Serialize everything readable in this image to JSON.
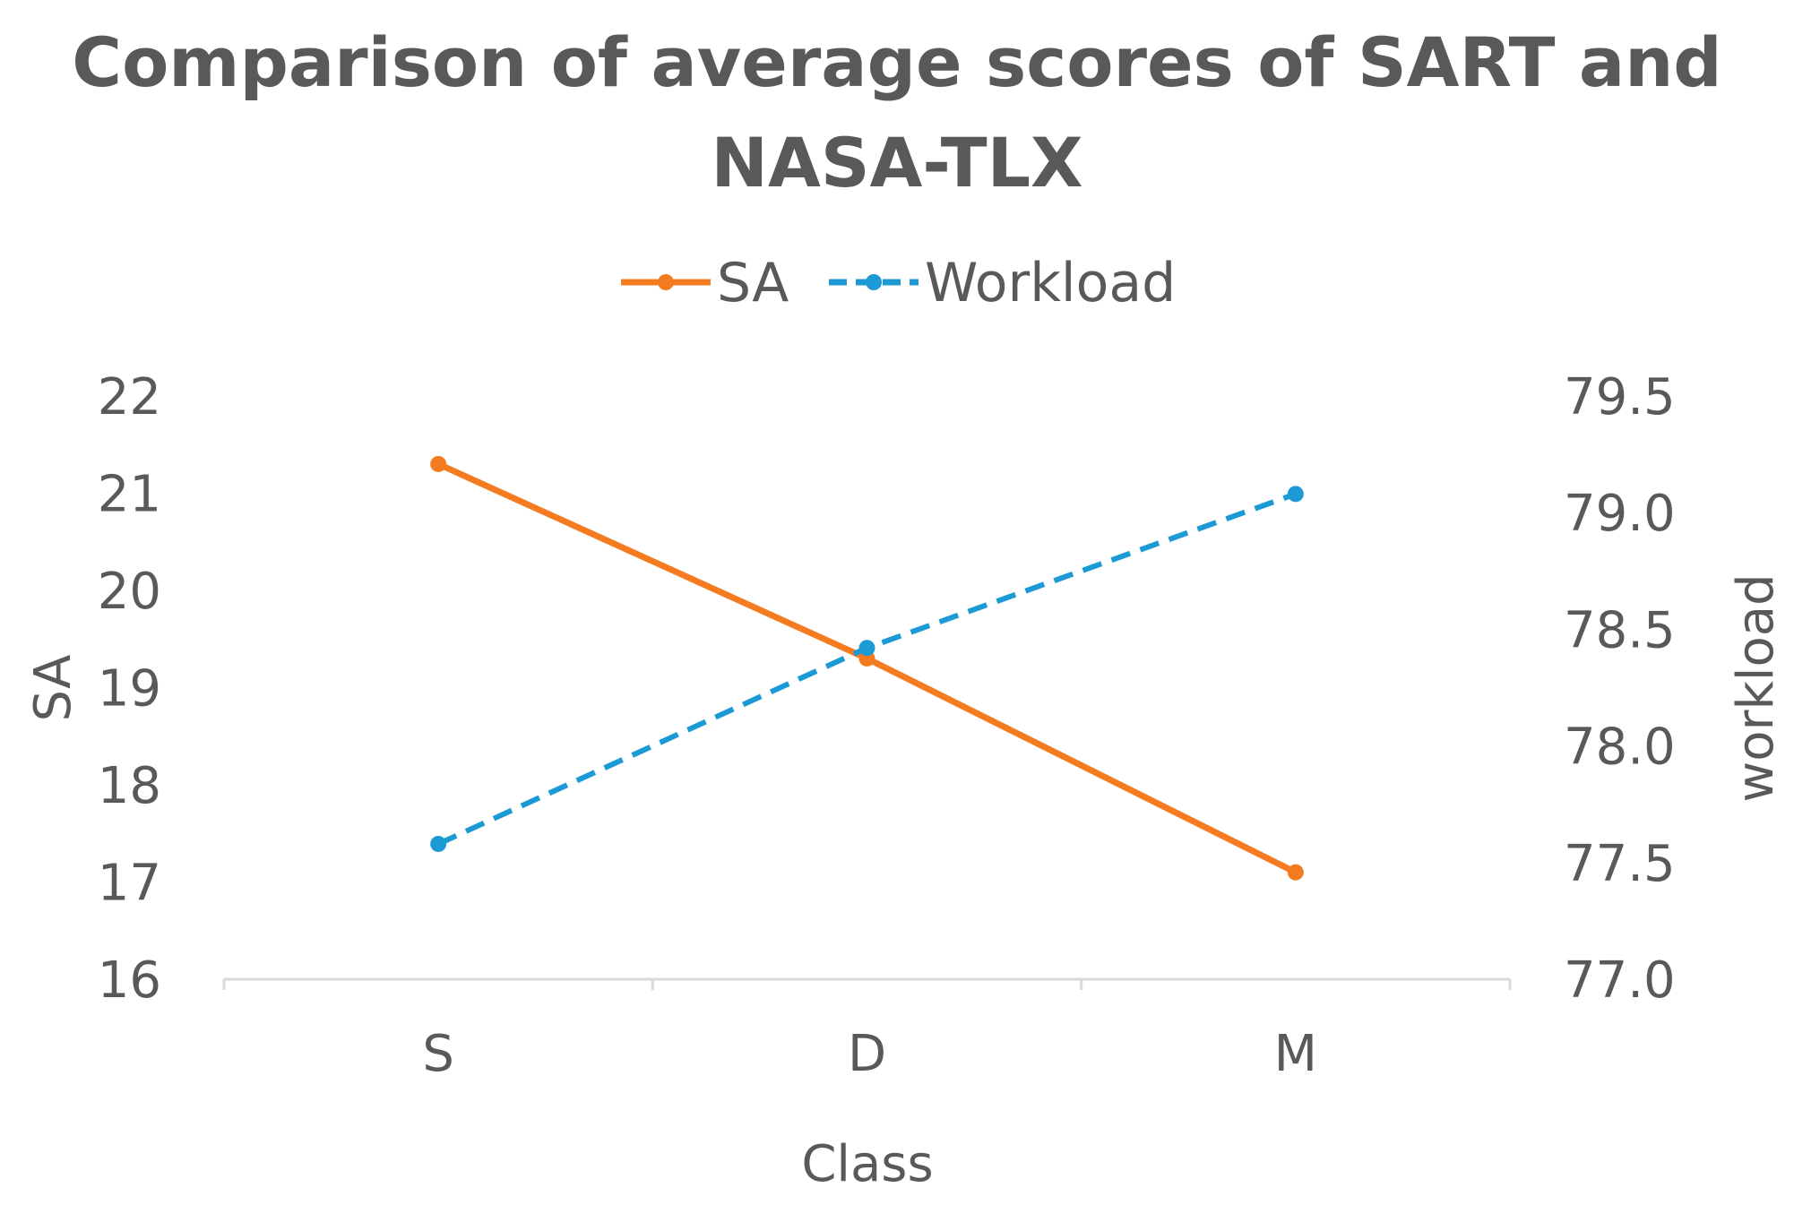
{
  "chart_data": {
    "type": "line",
    "title_lines": [
      "Comparison of average scores of SART and",
      "NASA-TLX"
    ],
    "categories": [
      "S",
      "D",
      "M"
    ],
    "xlabel": "Class",
    "ylabel": "SA",
    "y2label": "workload",
    "ylim": [
      16,
      22
    ],
    "y2lim": [
      77.0,
      79.5
    ],
    "y_ticks": [
      "16",
      "17",
      "18",
      "19",
      "20",
      "21",
      "22"
    ],
    "y2_ticks": [
      "77.0",
      "77.5",
      "78.0",
      "78.5",
      "79.0",
      "79.5"
    ],
    "grid": false,
    "legend_position": "top",
    "series": [
      {
        "name": "SA",
        "axis": "left",
        "values": [
          21.3,
          19.3,
          17.1
        ],
        "color": "#f47b20",
        "dashed": false
      },
      {
        "name": "Workload",
        "axis": "right",
        "values": [
          77.58,
          78.42,
          79.08
        ],
        "color": "#1c9ad6",
        "dashed": true
      }
    ]
  }
}
